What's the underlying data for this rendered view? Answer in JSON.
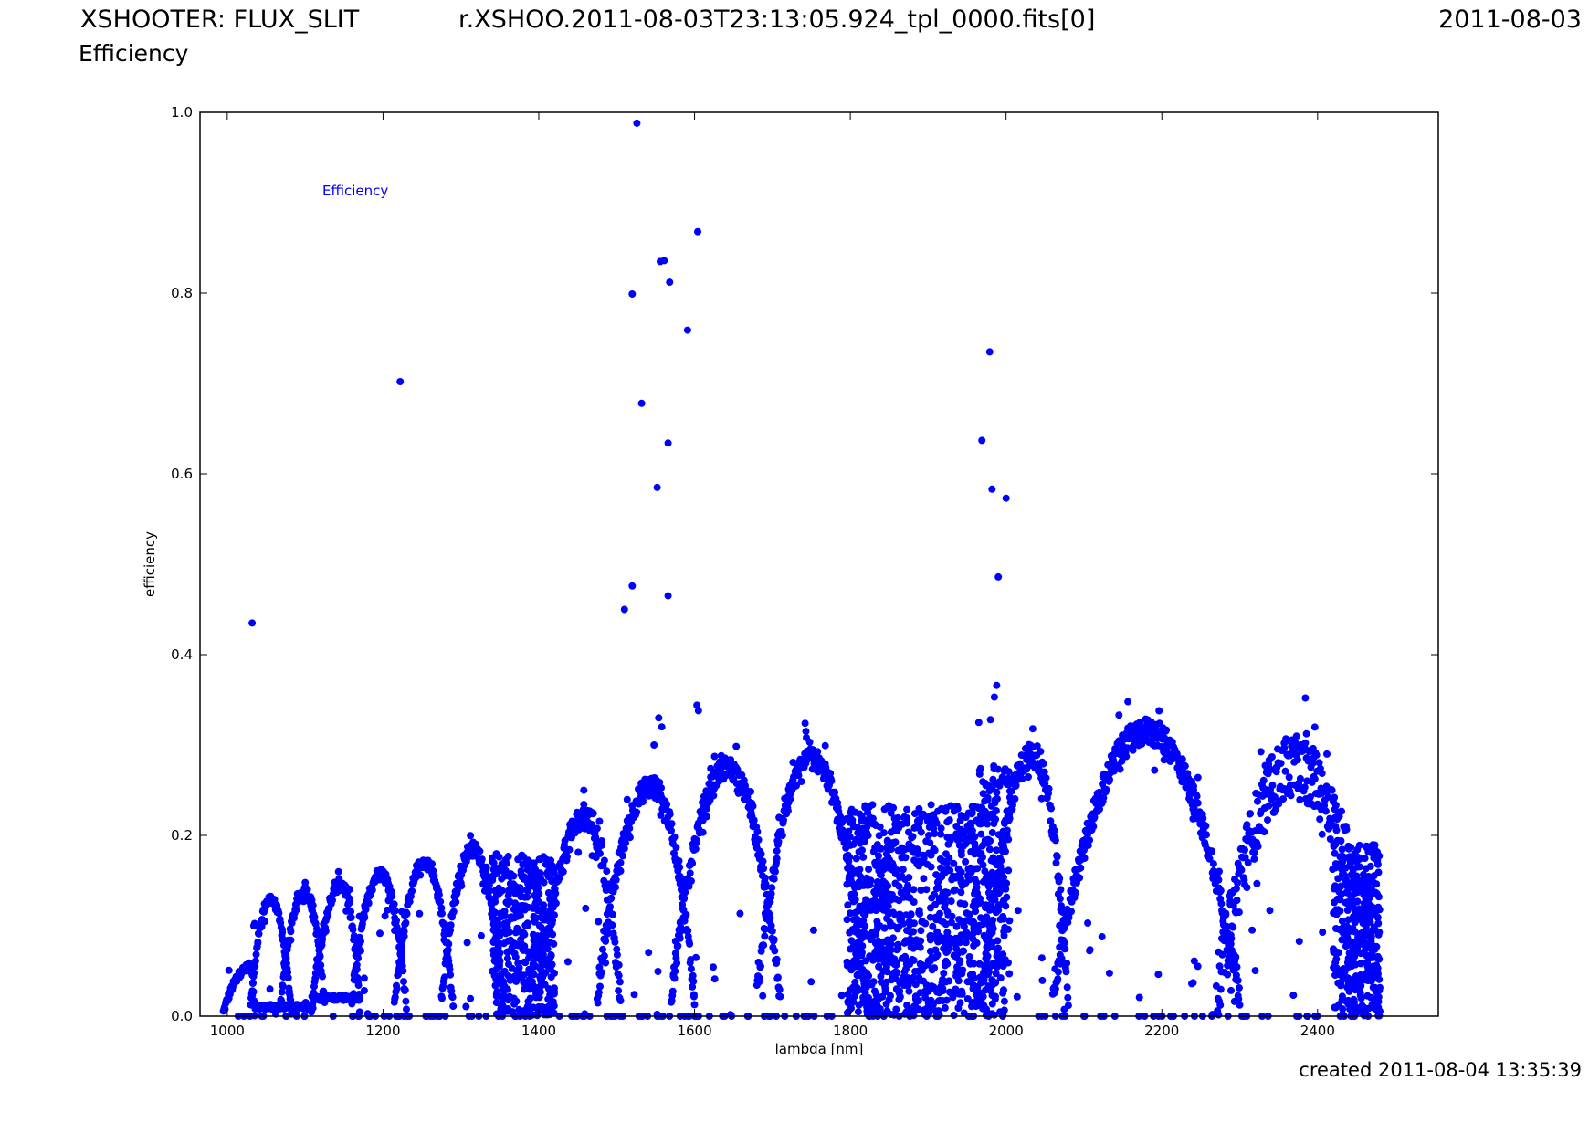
{
  "header": {
    "left": "XSHOOTER: FLUX_SLIT",
    "subtitle": "Efficiency",
    "center": "r.XSHOO.2011-08-03T23:13:05.924_tpl_0000.fits[0]",
    "right": "2011-08-03"
  },
  "footer": {
    "created": "created 2011-08-04 13:35:39"
  },
  "chart_data": {
    "type": "scatter",
    "xlabel": "lambda [nm]",
    "ylabel": "efficiency",
    "xlim": [
      965,
      2555
    ],
    "ylim": [
      0.0,
      1.0
    ],
    "xticks": [
      1000,
      1200,
      1400,
      1600,
      1800,
      2000,
      2200,
      2400
    ],
    "yticks": [
      0.0,
      0.2,
      0.4,
      0.6,
      0.8,
      1.0
    ],
    "xtick_labels": [
      "1000",
      "1200",
      "1400",
      "1600",
      "1800",
      "2000",
      "2200",
      "2400"
    ],
    "ytick_labels": [
      "0.0",
      "0.2",
      "0.4",
      "0.6",
      "0.8",
      "1.0"
    ],
    "legend": {
      "label": "Efficiency",
      "position": "top-left"
    },
    "series": [
      {
        "name": "Efficiency",
        "color": "#0000ff",
        "orders": [
          {
            "start": 995,
            "end": 1035,
            "peak": 1030,
            "max": 0.055,
            "noise": 0.004
          },
          {
            "start": 1030,
            "end": 1082,
            "peak": 1055,
            "max": 0.13,
            "noise": 0.005
          },
          {
            "start": 1068,
            "end": 1125,
            "peak": 1100,
            "max": 0.138,
            "noise": 0.006
          },
          {
            "start": 1108,
            "end": 1170,
            "peak": 1147,
            "max": 0.145,
            "noise": 0.008
          },
          {
            "start": 1160,
            "end": 1230,
            "peak": 1197,
            "max": 0.158,
            "noise": 0.007
          },
          {
            "start": 1215,
            "end": 1290,
            "peak": 1253,
            "max": 0.17,
            "noise": 0.006
          },
          {
            "start": 1275,
            "end": 1355,
            "peak": 1315,
            "max": 0.185,
            "noise": 0.008
          },
          {
            "start": 1400,
            "end": 1505,
            "peak": 1460,
            "max": 0.22,
            "noise": 0.015
          },
          {
            "start": 1475,
            "end": 1600,
            "peak": 1545,
            "max": 0.255,
            "noise": 0.012
          },
          {
            "start": 1570,
            "end": 1710,
            "peak": 1642,
            "max": 0.275,
            "noise": 0.012
          },
          {
            "start": 1680,
            "end": 1820,
            "peak": 1750,
            "max": 0.285,
            "noise": 0.012
          },
          {
            "start": 1970,
            "end": 2080,
            "peak": 2035,
            "max": 0.29,
            "noise": 0.015
          },
          {
            "start": 2060,
            "end": 2300,
            "peak": 2180,
            "max": 0.315,
            "noise": 0.015
          },
          {
            "start": 2270,
            "end": 2480,
            "peak": 2370,
            "max": 0.275,
            "noise": 0.035
          }
        ],
        "noise_bands": [
          {
            "start": 1340,
            "end": 1420,
            "max": 0.18
          },
          {
            "start": 1795,
            "end": 1965,
            "max": 0.235
          },
          {
            "start": 1965,
            "end": 2005,
            "max": 0.28
          },
          {
            "start": 2420,
            "end": 2480,
            "max": 0.19
          }
        ],
        "low_tails": [
          {
            "start": 1035,
            "end": 1110,
            "level": 0.01
          },
          {
            "start": 1110,
            "end": 1170,
            "level": 0.02
          }
        ],
        "outliers": [
          [
            1032,
            0.435
          ],
          [
            1222,
            0.702
          ],
          [
            1510,
            0.45
          ],
          [
            1520,
            0.476
          ],
          [
            1520,
            0.799
          ],
          [
            1526,
            0.988
          ],
          [
            1532,
            0.678
          ],
          [
            1552,
            0.585
          ],
          [
            1556,
            0.835
          ],
          [
            1561,
            0.836
          ],
          [
            1566,
            0.634
          ],
          [
            1566,
            0.465
          ],
          [
            1568,
            0.812
          ],
          [
            1591,
            0.759
          ],
          [
            1604,
            0.868
          ],
          [
            1603,
            0.344
          ],
          [
            1605,
            0.338
          ],
          [
            1554,
            0.33
          ],
          [
            1558,
            0.32
          ],
          [
            1548,
            0.3
          ],
          [
            1742,
            0.324
          ],
          [
            1743,
            0.315
          ],
          [
            1969,
            0.637
          ],
          [
            1979,
            0.735
          ],
          [
            1982,
            0.583
          ],
          [
            1990,
            0.486
          ],
          [
            2000,
            0.573
          ],
          [
            1965,
            0.325
          ],
          [
            1980,
            0.328
          ],
          [
            1985,
            0.353
          ],
          [
            1988,
            0.366
          ],
          [
            2412,
            0.29
          ],
          [
            2395,
            0.286
          ]
        ]
      }
    ]
  }
}
